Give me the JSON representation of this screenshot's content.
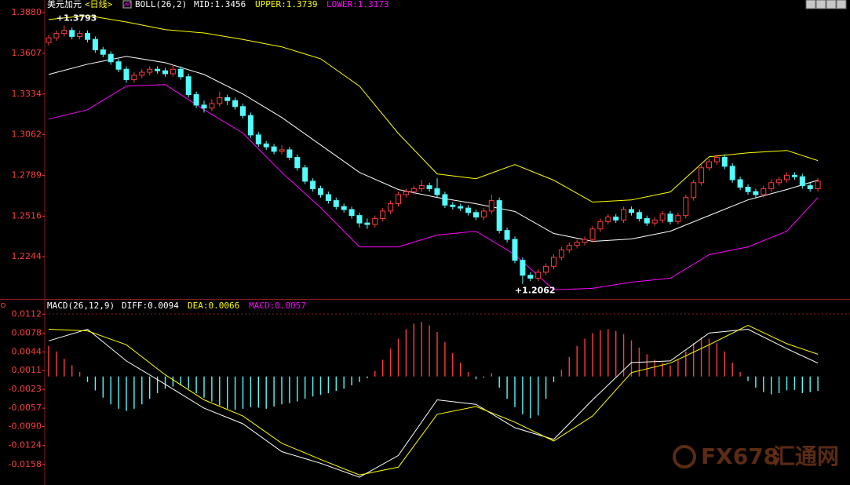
{
  "header": {
    "instrument": "美元加元",
    "period": "<日线>"
  },
  "watermark": [
    "FX678",
    "汇通网"
  ],
  "chart_data": [
    {
      "type": "candlestick",
      "title": "BOLL(26,2)",
      "up_color": "#ff3c3c",
      "down_color": "#54fcfc",
      "ylim": [
        1.1966,
        1.3964
      ],
      "yticks": [
        1.2244,
        1.2516,
        1.2789,
        1.3062,
        1.3334,
        1.3607,
        {
          "value": 1.388,
          "label": "1.3880"
        }
      ],
      "ohlc": [
        [
          1.368,
          1.373,
          1.366,
          1.371
        ],
        [
          1.371,
          1.376,
          1.369,
          1.374
        ],
        [
          1.374,
          1.3793,
          1.372,
          1.376
        ],
        [
          1.376,
          1.378,
          1.37,
          1.372
        ],
        [
          1.372,
          1.376,
          1.37,
          1.374
        ],
        [
          1.374,
          1.376,
          1.368,
          1.37
        ],
        [
          1.37,
          1.372,
          1.361,
          1.363
        ],
        [
          1.363,
          1.365,
          1.358,
          1.36
        ],
        [
          1.36,
          1.362,
          1.353,
          1.355
        ],
        [
          1.355,
          1.357,
          1.348,
          1.35
        ],
        [
          1.35,
          1.352,
          1.341,
          1.343
        ],
        [
          1.343,
          1.348,
          1.341,
          1.346
        ],
        [
          1.346,
          1.35,
          1.344,
          1.348
        ],
        [
          1.348,
          1.352,
          1.346,
          1.35
        ],
        [
          1.35,
          1.352,
          1.347,
          1.349
        ],
        [
          1.349,
          1.351,
          1.345,
          1.347
        ],
        [
          1.347,
          1.353,
          1.345,
          1.35
        ],
        [
          1.35,
          1.352,
          1.343,
          1.345
        ],
        [
          1.345,
          1.347,
          1.331,
          1.333
        ],
        [
          1.333,
          1.335,
          1.324,
          1.326
        ],
        [
          1.326,
          1.329,
          1.321,
          1.324
        ],
        [
          1.324,
          1.33,
          1.322,
          1.327
        ],
        [
          1.327,
          1.335,
          1.325,
          1.331
        ],
        [
          1.331,
          1.333,
          1.326,
          1.329
        ],
        [
          1.329,
          1.331,
          1.323,
          1.325
        ],
        [
          1.325,
          1.327,
          1.317,
          1.319
        ],
        [
          1.319,
          1.321,
          1.304,
          1.306
        ],
        [
          1.306,
          1.308,
          1.298,
          1.3
        ],
        [
          1.3,
          1.302,
          1.296,
          1.298
        ],
        [
          1.298,
          1.3,
          1.293,
          1.295
        ],
        [
          1.295,
          1.299,
          1.293,
          1.296
        ],
        [
          1.296,
          1.298,
          1.289,
          1.291
        ],
        [
          1.291,
          1.293,
          1.282,
          1.284
        ],
        [
          1.284,
          1.286,
          1.273,
          1.275
        ],
        [
          1.275,
          1.277,
          1.268,
          1.27
        ],
        [
          1.27,
          1.272,
          1.264,
          1.266
        ],
        [
          1.266,
          1.268,
          1.26,
          1.262
        ],
        [
          1.262,
          1.264,
          1.256,
          1.258
        ],
        [
          1.258,
          1.26,
          1.254,
          1.256
        ],
        [
          1.256,
          1.258,
          1.25,
          1.252
        ],
        [
          1.252,
          1.254,
          1.244,
          1.247
        ],
        [
          1.247,
          1.25,
          1.243,
          1.246
        ],
        [
          1.246,
          1.252,
          1.244,
          1.25
        ],
        [
          1.25,
          1.257,
          1.248,
          1.255
        ],
        [
          1.255,
          1.262,
          1.253,
          1.26
        ],
        [
          1.26,
          1.268,
          1.258,
          1.266
        ],
        [
          1.266,
          1.27,
          1.264,
          1.268
        ],
        [
          1.268,
          1.272,
          1.266,
          1.27
        ],
        [
          1.27,
          1.276,
          1.268,
          1.272
        ],
        [
          1.272,
          1.274,
          1.268,
          1.27
        ],
        [
          1.27,
          1.277,
          1.264,
          1.266
        ],
        [
          1.266,
          1.268,
          1.257,
          1.259
        ],
        [
          1.259,
          1.261,
          1.256,
          1.258
        ],
        [
          1.258,
          1.26,
          1.255,
          1.257
        ],
        [
          1.257,
          1.259,
          1.252,
          1.254
        ],
        [
          1.254,
          1.256,
          1.249,
          1.251
        ],
        [
          1.251,
          1.257,
          1.249,
          1.255
        ],
        [
          1.255,
          1.266,
          1.253,
          1.262
        ],
        [
          1.262,
          1.264,
          1.24,
          1.242
        ],
        [
          1.242,
          1.244,
          1.234,
          1.236
        ],
        [
          1.236,
          1.238,
          1.22,
          1.222
        ],
        [
          1.222,
          1.224,
          1.2062,
          1.212
        ],
        [
          1.212,
          1.214,
          1.208,
          1.21
        ],
        [
          1.21,
          1.216,
          1.208,
          1.214
        ],
        [
          1.214,
          1.22,
          1.212,
          1.218
        ],
        [
          1.218,
          1.226,
          1.216,
          1.224
        ],
        [
          1.224,
          1.231,
          1.222,
          1.229
        ],
        [
          1.229,
          1.234,
          1.227,
          1.232
        ],
        [
          1.232,
          1.236,
          1.23,
          1.234
        ],
        [
          1.234,
          1.238,
          1.232,
          1.236
        ],
        [
          1.236,
          1.245,
          1.234,
          1.243
        ],
        [
          1.243,
          1.25,
          1.241,
          1.248
        ],
        [
          1.248,
          1.253,
          1.246,
          1.251
        ],
        [
          1.251,
          1.253,
          1.247,
          1.249
        ],
        [
          1.249,
          1.258,
          1.247,
          1.256
        ],
        [
          1.256,
          1.258,
          1.252,
          1.254
        ],
        [
          1.254,
          1.256,
          1.248,
          1.25
        ],
        [
          1.25,
          1.252,
          1.245,
          1.247
        ],
        [
          1.247,
          1.251,
          1.245,
          1.249
        ],
        [
          1.249,
          1.255,
          1.247,
          1.253
        ],
        [
          1.253,
          1.255,
          1.246,
          1.248
        ],
        [
          1.248,
          1.254,
          1.246,
          1.252
        ],
        [
          1.252,
          1.266,
          1.25,
          1.264
        ],
        [
          1.264,
          1.276,
          1.262,
          1.274
        ],
        [
          1.274,
          1.286,
          1.272,
          1.284
        ],
        [
          1.284,
          1.29,
          1.282,
          1.288
        ],
        [
          1.288,
          1.293,
          1.286,
          1.291
        ],
        [
          1.291,
          1.293,
          1.283,
          1.285
        ],
        [
          1.285,
          1.287,
          1.274,
          1.276
        ],
        [
          1.276,
          1.278,
          1.269,
          1.271
        ],
        [
          1.271,
          1.273,
          1.266,
          1.268
        ],
        [
          1.268,
          1.27,
          1.264,
          1.266
        ],
        [
          1.266,
          1.272,
          1.264,
          1.27
        ],
        [
          1.27,
          1.276,
          1.268,
          1.274
        ],
        [
          1.274,
          1.278,
          1.272,
          1.276
        ],
        [
          1.276,
          1.281,
          1.274,
          1.279
        ],
        [
          1.279,
          1.281,
          1.276,
          1.278
        ],
        [
          1.278,
          1.28,
          1.27,
          1.272
        ],
        [
          1.272,
          1.274,
          1.268,
          1.27
        ],
        [
          1.27,
          1.277,
          1.268,
          1.275
        ]
      ],
      "x": [
        0,
        5,
        10,
        15,
        20,
        25,
        30,
        35,
        40,
        45,
        50,
        55,
        60,
        65,
        70,
        75,
        80,
        85,
        90,
        95,
        99
      ],
      "series": [
        {
          "name": "MID:1.3456",
          "color": "#ffffff",
          "values": [
            1.3465,
            1.3534,
            1.3586,
            1.3544,
            1.3465,
            1.3334,
            1.3177,
            1.2993,
            1.2809,
            1.2694,
            1.2641,
            1.2599,
            1.2547,
            1.24,
            1.2347,
            1.2363,
            1.2415,
            1.252,
            1.2625,
            1.2694,
            1.2757
          ]
        },
        {
          "name": "UPPER:1.3739",
          "color": "#ffff00",
          "values": [
            1.3833,
            1.386,
            1.3817,
            1.3765,
            1.3743,
            1.37,
            1.365,
            1.357,
            1.3387,
            1.307,
            1.2799,
            1.2767,
            1.2862,
            1.2757,
            1.261,
            1.2625,
            1.2678,
            1.2914,
            1.294,
            1.2956,
            1.2888
          ]
        },
        {
          "name": "LOWER:1.3173",
          "color": "#ff00ff",
          "values": [
            1.3166,
            1.3229,
            1.3387,
            1.3397,
            1.3229,
            1.3072,
            1.2809,
            1.2573,
            1.231,
            1.231,
            1.2389,
            1.2415,
            1.2258,
            1.2022,
            1.2032,
            1.2074,
            1.21,
            1.2258,
            1.231,
            1.2415,
            1.2641
          ]
        }
      ],
      "annotations": [
        {
          "label": "+1.3793",
          "value": 1.3793
        },
        {
          "label": "+1.2062",
          "value": 1.2062
        }
      ]
    },
    {
      "type": "macd",
      "title": "MACD(26,12,9)",
      "ylim": [
        -0.0195,
        0.0135
      ],
      "yticks": [
        -0.0158,
        -0.0124,
        {
          "value": -0.009,
          "label": "-0.0090"
        },
        -0.0057,
        -0.0023,
        0.0011,
        0.0044,
        0.0078,
        0.0112
      ],
      "histogram": {
        "name": "MACD:0.0057",
        "color": "#ff00ff",
        "up_color": "#ff3c3c",
        "down_color": "#54fcfc",
        "values": [
          0.0055,
          0.0045,
          0.0032,
          0.002,
          0.0008,
          -0.001,
          -0.0025,
          -0.0038,
          -0.005,
          -0.0058,
          -0.0062,
          -0.0058,
          -0.005,
          -0.004,
          -0.003,
          -0.0022,
          -0.0018,
          -0.0016,
          -0.0022,
          -0.003,
          -0.0038,
          -0.0045,
          -0.0052,
          -0.0058,
          -0.006,
          -0.0058,
          -0.0055,
          -0.0056,
          -0.0058,
          -0.0054,
          -0.005,
          -0.0048,
          -0.0045,
          -0.004,
          -0.0036,
          -0.0033,
          -0.003,
          -0.0026,
          -0.0022,
          -0.0016,
          -0.001,
          -0.0003,
          0.001,
          0.003,
          0.005,
          0.0068,
          0.0085,
          0.0095,
          0.0098,
          0.0092,
          0.008,
          0.0062,
          0.0042,
          0.0025,
          0.0008,
          -0.0005,
          -0.0002,
          0.0006,
          -0.002,
          -0.004,
          -0.0055,
          -0.0068,
          -0.0075,
          -0.007,
          -0.004,
          -0.001,
          0.0012,
          0.0035,
          0.0055,
          0.0068,
          0.0078,
          0.0083,
          0.0085,
          0.0082,
          0.0076,
          0.0065,
          0.0052,
          0.004,
          0.003,
          0.0025,
          0.002,
          0.003,
          0.0045,
          0.006,
          0.007,
          0.0068,
          0.006,
          0.0045,
          0.0025,
          0.0008,
          -0.0008,
          -0.002,
          -0.0028,
          -0.0032,
          -0.003,
          -0.0025,
          -0.0024,
          -0.003,
          -0.0028,
          -0.0026
        ]
      },
      "x": [
        0,
        5,
        10,
        15,
        20,
        25,
        30,
        35,
        40,
        45,
        50,
        55,
        60,
        65,
        70,
        75,
        80,
        85,
        90,
        95,
        99
      ],
      "series": [
        {
          "name": "DIFF:0.0094",
          "color": "#ffffff",
          "values": [
            0.0064,
            0.0085,
            0.0028,
            -0.0014,
            -0.0057,
            -0.0085,
            -0.0135,
            -0.0156,
            -0.0181,
            -0.0142,
            -0.0042,
            -0.005,
            -0.0092,
            -0.0113,
            -0.0042,
            0.0025,
            0.0028,
            0.0078,
            0.0085,
            0.005,
            0.0024
          ]
        },
        {
          "name": "DEA:0.0066",
          "color": "#ffff00",
          "values": [
            0.0085,
            0.0082,
            0.0057,
            0.0003,
            -0.0042,
            -0.0071,
            -0.012,
            -0.0149,
            -0.0177,
            -0.0163,
            -0.0068,
            -0.0054,
            -0.0082,
            -0.0116,
            -0.0071,
            0.0007,
            0.0024,
            0.0057,
            0.0092,
            0.0059,
            0.004
          ]
        }
      ]
    }
  ]
}
